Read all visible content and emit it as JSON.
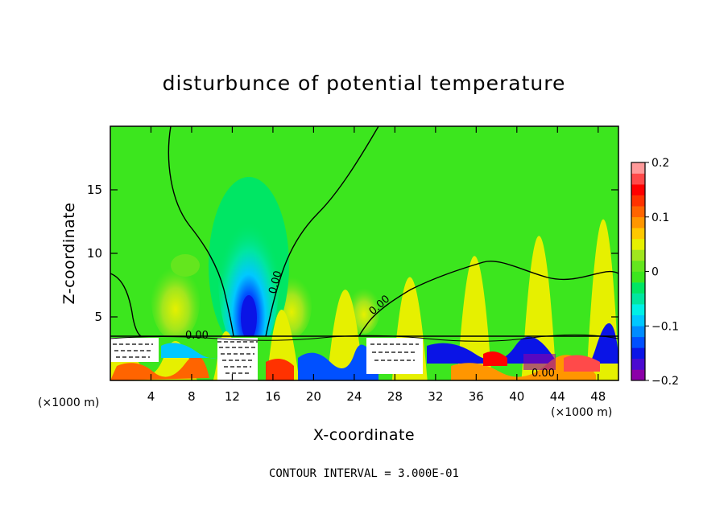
{
  "chart_data": {
    "type": "heatmap",
    "title": "disturbunce of potential temperature",
    "xlabel": "X-coordinate",
    "ylabel": "Z-coordinate",
    "x_unit": "(×1000 m)",
    "x_unit_right": "(×1000 m)",
    "xlim": [
      0,
      50
    ],
    "ylim": [
      0,
      20
    ],
    "x_ticks": [
      4,
      8,
      12,
      16,
      20,
      24,
      28,
      32,
      36,
      40,
      44,
      48
    ],
    "y_ticks": [
      5,
      10,
      15
    ],
    "colorbar": {
      "range": [
        -0.2,
        0.2
      ],
      "tick_values": [
        0.2,
        0.1,
        0,
        -0.1,
        -0.2
      ],
      "tick_labels": [
        "0.2",
        "0.1",
        "0",
        "−0.1",
        "−0.2"
      ],
      "colors": [
        "#8b00a8",
        "#4b0ad0",
        "#0a14e6",
        "#0050ff",
        "#008cff",
        "#00c8ff",
        "#00f0e6",
        "#00e6a0",
        "#00e664",
        "#3ce61e",
        "#64e61e",
        "#a0e61e",
        "#e6f000",
        "#ffc800",
        "#ff9600",
        "#ff6400",
        "#ff3200",
        "#ff0000",
        "#ff4a4a",
        "#ff9a9a"
      ]
    },
    "contour_labels": [
      "0.00",
      "0.00",
      "0.00",
      "0.00"
    ],
    "contour_interval_text": "CONTOUR INTERVAL = 3.000E-01"
  }
}
